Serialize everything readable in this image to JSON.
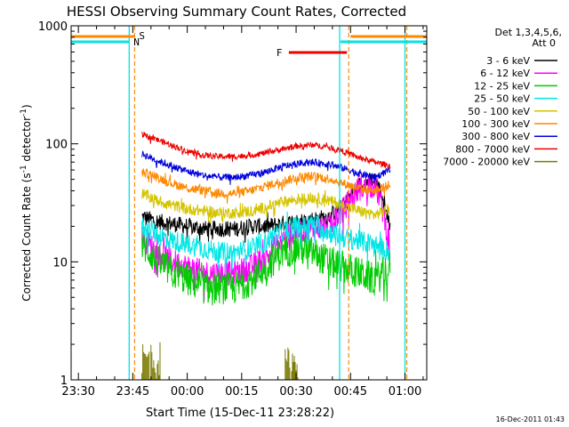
{
  "chart_data": {
    "type": "line",
    "title": "HESSI Observing Summary Count Rates, Corrected",
    "xlabel": "Start Time (15-Dec-11 23:28:22)",
    "ylabel": "Corrected Count Rate (s",
    "ylabel_sup": "-1",
    "ylabel_tail": " detector",
    "ylabel_sup2": "-1",
    "ylabel_close": ")",
    "yscale": "log",
    "ylim": [
      1,
      1000
    ],
    "y_ticks": [
      "1",
      "10",
      "100",
      "1000"
    ],
    "xlim_minutes": [
      -2,
      96
    ],
    "x_ticks": [
      {
        "label": "23:30",
        "min": 0
      },
      {
        "label": "23:45",
        "min": 15
      },
      {
        "label": "00:00",
        "min": 30
      },
      {
        "label": "00:15",
        "min": 45
      },
      {
        "label": "00:30",
        "min": 60
      },
      {
        "label": "00:45",
        "min": 75
      },
      {
        "label": "01:00",
        "min": 90
      }
    ],
    "timestamp": "16-Dec-2011 01:43",
    "legend": {
      "header1": "Det 1,3,4,5,6,",
      "header2": "Att 0",
      "placement": "right"
    },
    "data_start_min": 17.5,
    "data_end_min": 86,
    "series": [
      {
        "name": "3 - 6 keV",
        "color": "#000000",
        "values": [
          24,
          22,
          21,
          20,
          19,
          19,
          19,
          20,
          20,
          21,
          22,
          23,
          24,
          30,
          45,
          50,
          20
        ]
      },
      {
        "name": "6 - 12 keV",
        "color": "#ff00ff",
        "values": [
          16,
          12,
          10,
          9,
          8,
          8,
          8,
          9,
          11,
          15,
          18,
          19,
          20,
          28,
          42,
          45,
          10
        ]
      },
      {
        "name": "12 - 25 keV",
        "color": "#00cc00",
        "values": [
          14,
          10,
          8,
          7,
          6,
          6,
          6,
          7,
          9,
          12,
          13,
          12,
          10,
          9,
          8,
          7,
          9
        ]
      },
      {
        "name": "25 - 50 keV",
        "color": "#00e5e5",
        "values": [
          20,
          17,
          15,
          14,
          13,
          12,
          12,
          13,
          15,
          18,
          20,
          21,
          18,
          16,
          15,
          14,
          12
        ]
      },
      {
        "name": "50 - 100 keV",
        "color": "#d4c400",
        "values": [
          38,
          33,
          30,
          28,
          27,
          26,
          26,
          27,
          29,
          32,
          34,
          35,
          33,
          30,
          27,
          25,
          28
        ]
      },
      {
        "name": "100 - 300 keV",
        "color": "#ff8800",
        "values": [
          58,
          52,
          46,
          42,
          40,
          38,
          38,
          40,
          44,
          48,
          52,
          53,
          51,
          46,
          42,
          40,
          45
        ]
      },
      {
        "name": "300 - 800 keV",
        "color": "#0000dd",
        "values": [
          82,
          72,
          64,
          58,
          54,
          52,
          52,
          54,
          58,
          64,
          68,
          70,
          67,
          62,
          56,
          52,
          60
        ]
      },
      {
        "name": "800 - 7000 keV",
        "color": "#ee0000",
        "values": [
          120,
          108,
          96,
          86,
          80,
          78,
          78,
          80,
          84,
          90,
          96,
          98,
          94,
          86,
          76,
          70,
          65
        ]
      },
      {
        "name": "7000 - 20000 keV",
        "color": "#7a7a00",
        "values": []
      }
    ],
    "annotations": {
      "saa_label": "S",
      "night_label": "N",
      "flare_label": "F",
      "saa_color": "#ff8800",
      "night_color": "#00e5e5",
      "flare_color": "#ee0000",
      "night_lines_min": [
        -7,
        14,
        72,
        90
      ],
      "saa_lines_min": [
        -7,
        15.5,
        74.5,
        90.5
      ],
      "flare_span_min": [
        58,
        74
      ]
    }
  }
}
